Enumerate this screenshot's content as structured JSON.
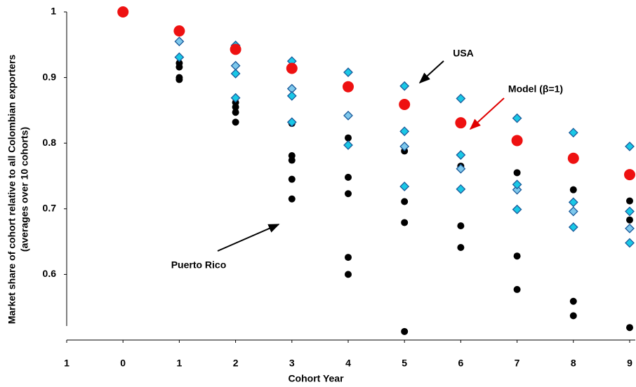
{
  "chart_data": {
    "type": "scatter",
    "x_label": "Cohort Year",
    "y_label": [
      "Market share of cohort relative  to all Colombian exporters",
      "(averages over 10 cohorts)"
    ],
    "annotations": [
      {
        "text": "USA",
        "color": "#000000"
      },
      {
        "text": "Model (β=1)",
        "color": "#e00000"
      },
      {
        "text": "Puerto Rico",
        "color": "#000000"
      }
    ],
    "xlim": [
      -1,
      9.1
    ],
    "ylim": [
      0.5,
      1
    ],
    "xticks": [
      {
        "value": -1,
        "label": "1"
      },
      0,
      1,
      2,
      3,
      4,
      5,
      6,
      7,
      8,
      9
    ],
    "yticks": [
      0.6,
      0.7,
      0.8,
      0.9,
      1
    ],
    "grid": false,
    "series": [
      {
        "marker": "circle",
        "color": "#000000",
        "x": [
          1,
          1,
          1,
          1,
          2,
          2,
          2,
          2,
          3,
          3,
          3,
          3,
          3,
          4,
          4,
          4,
          4,
          4,
          5,
          5,
          5,
          5,
          6,
          6,
          6,
          7,
          7,
          7,
          8,
          8,
          8,
          9,
          9,
          9
        ],
        "values": [
          0.922,
          0.916,
          0.9,
          0.897,
          0.862,
          0.855,
          0.847,
          0.832,
          0.83,
          0.781,
          0.774,
          0.745,
          0.715,
          0.808,
          0.748,
          0.723,
          0.626,
          0.6,
          0.788,
          0.711,
          0.679,
          0.513,
          0.765,
          0.674,
          0.641,
          0.755,
          0.628,
          0.577,
          0.729,
          0.559,
          0.537,
          0.712,
          0.683,
          0.519
        ]
      },
      {
        "marker": "diamond",
        "color": "#7ec8ec",
        "x": [
          1,
          2,
          3,
          4,
          5,
          6,
          7,
          8,
          9
        ],
        "values": [
          0.955,
          0.918,
          0.883,
          0.842,
          0.795,
          0.761,
          0.729,
          0.696,
          0.67
        ]
      },
      {
        "marker": "diamond",
        "color": "#19c8e6",
        "x": [
          1,
          2,
          2,
          2,
          3,
          3,
          3,
          4,
          4,
          5,
          5,
          5,
          6,
          6,
          6,
          7,
          7,
          7,
          8,
          8,
          8,
          9,
          9,
          9
        ],
        "values": [
          0.931,
          0.949,
          0.906,
          0.869,
          0.925,
          0.872,
          0.832,
          0.908,
          0.797,
          0.887,
          0.818,
          0.734,
          0.868,
          0.782,
          0.73,
          0.838,
          0.737,
          0.699,
          0.816,
          0.71,
          0.672,
          0.795,
          0.696,
          0.648
        ]
      },
      {
        "marker": "circle-large",
        "color": "#ee1111",
        "x": [
          0,
          1,
          2,
          3,
          4,
          5,
          6,
          7,
          8,
          9
        ],
        "values": [
          1,
          0.971,
          0.943,
          0.914,
          0.886,
          0.859,
          0.831,
          0.804,
          0.777,
          0.752
        ]
      }
    ]
  }
}
